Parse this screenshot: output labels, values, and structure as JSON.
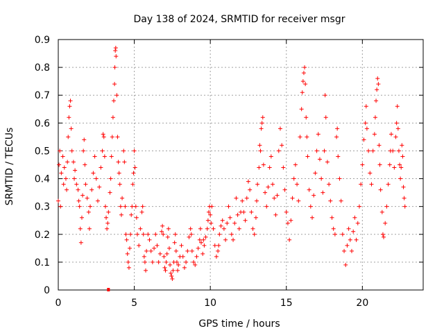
{
  "chart_data": {
    "type": "scatter",
    "title": "Day 138 of 2024, SRMTID for receiver msgr",
    "xlabel": "GPS time / hours",
    "ylabel": "SRMTID / TECUs",
    "xlim": [
      0,
      24
    ],
    "ylim": [
      0,
      0.9
    ],
    "xticks": [
      0,
      5,
      10,
      15,
      20
    ],
    "yticks": [
      0,
      0.1,
      0.2,
      0.3,
      0.4,
      0.5,
      0.6,
      0.7,
      0.8,
      0.9
    ],
    "ytick_labels": [
      "0",
      "0.1",
      "0.2",
      "0.3",
      "0.4",
      "0.5",
      "0.6",
      "0.7",
      "0.8",
      "0.9"
    ],
    "grid": true,
    "marker": "+",
    "color": "#ff0000",
    "series": [
      {
        "name": "SRMTID",
        "points": [
          [
            0.0,
            0.32
          ],
          [
            0.05,
            0.45
          ],
          [
            0.1,
            0.5
          ],
          [
            0.15,
            0.3
          ],
          [
            0.2,
            0.42
          ],
          [
            0.3,
            0.48
          ],
          [
            0.35,
            0.38
          ],
          [
            0.4,
            0.44
          ],
          [
            0.5,
            0.4
          ],
          [
            0.55,
            0.36
          ],
          [
            0.6,
            0.46
          ],
          [
            0.65,
            0.55
          ],
          [
            0.7,
            0.62
          ],
          [
            0.75,
            0.66
          ],
          [
            0.8,
            0.68
          ],
          [
            0.85,
            0.58
          ],
          [
            0.9,
            0.5
          ],
          [
            1.0,
            0.46
          ],
          [
            1.05,
            0.4
          ],
          [
            1.1,
            0.43
          ],
          [
            1.2,
            0.38
          ],
          [
            1.3,
            0.36
          ],
          [
            1.35,
            0.32
          ],
          [
            1.4,
            0.3
          ],
          [
            1.45,
            0.22
          ],
          [
            1.5,
            0.17
          ],
          [
            1.55,
            0.26
          ],
          [
            1.6,
            0.34
          ],
          [
            1.65,
            0.5
          ],
          [
            1.7,
            0.54
          ],
          [
            1.75,
            0.45
          ],
          [
            1.8,
            0.38
          ],
          [
            1.9,
            0.33
          ],
          [
            2.0,
            0.28
          ],
          [
            2.05,
            0.22
          ],
          [
            2.1,
            0.3
          ],
          [
            2.2,
            0.36
          ],
          [
            2.3,
            0.42
          ],
          [
            2.4,
            0.48
          ],
          [
            2.5,
            0.4
          ],
          [
            2.6,
            0.32
          ],
          [
            2.7,
            0.37
          ],
          [
            2.8,
            0.44
          ],
          [
            2.9,
            0.5
          ],
          [
            2.95,
            0.56
          ],
          [
            3.0,
            0.55
          ],
          [
            3.05,
            0.48
          ],
          [
            3.1,
            0.3
          ],
          [
            3.15,
            0.26
          ],
          [
            3.2,
            0.22
          ],
          [
            3.25,
            0.24
          ],
          [
            3.3,
            0.28
          ],
          [
            3.4,
            0.35
          ],
          [
            3.45,
            0.4
          ],
          [
            3.5,
            0.48
          ],
          [
            3.55,
            0.55
          ],
          [
            3.6,
            0.62
          ],
          [
            3.65,
            0.68
          ],
          [
            3.7,
            0.74
          ],
          [
            3.72,
            0.8
          ],
          [
            3.75,
            0.86
          ],
          [
            3.78,
            0.87
          ],
          [
            3.8,
            0.84
          ],
          [
            3.85,
            0.7
          ],
          [
            3.9,
            0.55
          ],
          [
            3.95,
            0.46
          ],
          [
            4.0,
            0.42
          ],
          [
            4.05,
            0.38
          ],
          [
            4.1,
            0.3
          ],
          [
            4.15,
            0.27
          ],
          [
            4.2,
            0.33
          ],
          [
            4.3,
            0.5
          ],
          [
            4.35,
            0.46
          ],
          [
            4.4,
            0.3
          ],
          [
            4.45,
            0.2
          ],
          [
            4.5,
            0.18
          ],
          [
            4.55,
            0.13
          ],
          [
            4.6,
            0.1
          ],
          [
            4.65,
            0.08
          ],
          [
            4.7,
            0.15
          ],
          [
            4.75,
            0.2
          ],
          [
            4.8,
            0.27
          ],
          [
            4.85,
            0.3
          ],
          [
            4.9,
            0.38
          ],
          [
            4.95,
            0.42
          ],
          [
            5.0,
            0.5
          ],
          [
            5.05,
            0.44
          ],
          [
            5.1,
            0.3
          ],
          [
            5.15,
            0.26
          ],
          [
            5.2,
            0.2
          ],
          [
            5.3,
            0.16
          ],
          [
            5.4,
            0.22
          ],
          [
            5.5,
            0.28
          ],
          [
            5.55,
            0.3
          ],
          [
            5.6,
            0.2
          ],
          [
            5.65,
            0.12
          ],
          [
            5.7,
            0.1
          ],
          [
            5.75,
            0.07
          ],
          [
            5.8,
            0.14
          ],
          [
            5.9,
            0.2
          ],
          [
            6.0,
            0.18
          ],
          [
            6.1,
            0.14
          ],
          [
            6.2,
            0.1
          ],
          [
            6.3,
            0.15
          ],
          [
            6.4,
            0.2
          ],
          [
            6.5,
            0.16
          ],
          [
            6.6,
            0.1
          ],
          [
            6.7,
            0.13
          ],
          [
            6.8,
            0.21
          ],
          [
            6.85,
            0.23
          ],
          [
            6.9,
            0.2
          ],
          [
            6.95,
            0.12
          ],
          [
            7.0,
            0.08
          ],
          [
            7.05,
            0.07
          ],
          [
            7.1,
            0.1
          ],
          [
            7.15,
            0.13
          ],
          [
            7.2,
            0.19
          ],
          [
            7.25,
            0.22
          ],
          [
            7.3,
            0.15
          ],
          [
            7.35,
            0.09
          ],
          [
            7.4,
            0.06
          ],
          [
            7.45,
            0.05
          ],
          [
            7.5,
            0.04
          ],
          [
            7.55,
            0.07
          ],
          [
            7.6,
            0.1
          ],
          [
            7.65,
            0.17
          ],
          [
            7.7,
            0.2
          ],
          [
            7.75,
            0.14
          ],
          [
            7.8,
            0.1
          ],
          [
            7.85,
            0.07
          ],
          [
            7.9,
            0.09
          ],
          [
            8.0,
            0.12
          ],
          [
            8.1,
            0.16
          ],
          [
            8.2,
            0.12
          ],
          [
            8.3,
            0.08
          ],
          [
            8.4,
            0.1
          ],
          [
            8.5,
            0.14
          ],
          [
            8.6,
            0.19
          ],
          [
            8.7,
            0.22
          ],
          [
            8.75,
            0.2
          ],
          [
            8.8,
            0.14
          ],
          [
            8.9,
            0.1
          ],
          [
            9.0,
            0.09
          ],
          [
            9.1,
            0.12
          ],
          [
            9.2,
            0.15
          ],
          [
            9.3,
            0.18
          ],
          [
            9.35,
            0.22
          ],
          [
            9.4,
            0.17
          ],
          [
            9.5,
            0.13
          ],
          [
            9.55,
            0.18
          ],
          [
            9.6,
            0.16
          ],
          [
            9.7,
            0.19
          ],
          [
            9.8,
            0.22
          ],
          [
            9.85,
            0.25
          ],
          [
            9.9,
            0.28
          ],
          [
            9.95,
            0.3
          ],
          [
            10.0,
            0.27
          ],
          [
            10.05,
            0.24
          ],
          [
            10.1,
            0.3
          ],
          [
            10.2,
            0.22
          ],
          [
            10.3,
            0.16
          ],
          [
            10.4,
            0.12
          ],
          [
            10.5,
            0.14
          ],
          [
            10.55,
            0.16
          ],
          [
            10.6,
            0.2
          ],
          [
            10.7,
            0.23
          ],
          [
            10.8,
            0.25
          ],
          [
            10.9,
            0.22
          ],
          [
            11.0,
            0.18
          ],
          [
            11.1,
            0.24
          ],
          [
            11.2,
            0.3
          ],
          [
            11.3,
            0.26
          ],
          [
            11.4,
            0.2
          ],
          [
            11.5,
            0.18
          ],
          [
            11.6,
            0.24
          ],
          [
            11.7,
            0.33
          ],
          [
            11.8,
            0.27
          ],
          [
            11.9,
            0.22
          ],
          [
            12.0,
            0.28
          ],
          [
            12.1,
            0.32
          ],
          [
            12.2,
            0.28
          ],
          [
            12.3,
            0.25
          ],
          [
            12.4,
            0.33
          ],
          [
            12.5,
            0.39
          ],
          [
            12.6,
            0.36
          ],
          [
            12.7,
            0.28
          ],
          [
            12.8,
            0.22
          ],
          [
            12.9,
            0.2
          ],
          [
            13.0,
            0.26
          ],
          [
            13.05,
            0.32
          ],
          [
            13.1,
            0.38
          ],
          [
            13.2,
            0.44
          ],
          [
            13.25,
            0.52
          ],
          [
            13.3,
            0.5
          ],
          [
            13.35,
            0.58
          ],
          [
            13.4,
            0.6
          ],
          [
            13.45,
            0.62
          ],
          [
            13.5,
            0.45
          ],
          [
            13.6,
            0.35
          ],
          [
            13.7,
            0.3
          ],
          [
            13.8,
            0.37
          ],
          [
            13.9,
            0.44
          ],
          [
            14.0,
            0.48
          ],
          [
            14.1,
            0.38
          ],
          [
            14.2,
            0.33
          ],
          [
            14.3,
            0.27
          ],
          [
            14.4,
            0.34
          ],
          [
            14.5,
            0.5
          ],
          [
            14.6,
            0.58
          ],
          [
            14.7,
            0.52
          ],
          [
            14.8,
            0.44
          ],
          [
            14.9,
            0.36
          ],
          [
            15.0,
            0.28
          ],
          [
            15.1,
            0.24
          ],
          [
            15.2,
            0.18
          ],
          [
            15.3,
            0.25
          ],
          [
            15.4,
            0.33
          ],
          [
            15.5,
            0.4
          ],
          [
            15.6,
            0.45
          ],
          [
            15.7,
            0.38
          ],
          [
            15.8,
            0.32
          ],
          [
            15.9,
            0.55
          ],
          [
            16.0,
            0.65
          ],
          [
            16.05,
            0.71
          ],
          [
            16.1,
            0.75
          ],
          [
            16.15,
            0.78
          ],
          [
            16.2,
            0.8
          ],
          [
            16.25,
            0.74
          ],
          [
            16.3,
            0.62
          ],
          [
            16.35,
            0.55
          ],
          [
            16.4,
            0.48
          ],
          [
            16.5,
            0.36
          ],
          [
            16.6,
            0.3
          ],
          [
            16.7,
            0.26
          ],
          [
            16.8,
            0.34
          ],
          [
            16.9,
            0.42
          ],
          [
            17.0,
            0.5
          ],
          [
            17.1,
            0.56
          ],
          [
            17.2,
            0.47
          ],
          [
            17.3,
            0.4
          ],
          [
            17.4,
            0.35
          ],
          [
            17.5,
            0.5
          ],
          [
            17.55,
            0.7
          ],
          [
            17.6,
            0.62
          ],
          [
            17.7,
            0.46
          ],
          [
            17.8,
            0.38
          ],
          [
            17.9,
            0.32
          ],
          [
            18.0,
            0.26
          ],
          [
            18.1,
            0.22
          ],
          [
            18.2,
            0.2
          ],
          [
            18.3,
            0.55
          ],
          [
            18.35,
            0.58
          ],
          [
            18.4,
            0.48
          ],
          [
            18.5,
            0.4
          ],
          [
            18.6,
            0.32
          ],
          [
            18.7,
            0.2
          ],
          [
            18.8,
            0.14
          ],
          [
            18.9,
            0.09
          ],
          [
            19.0,
            0.16
          ],
          [
            19.1,
            0.22
          ],
          [
            19.2,
            0.18
          ],
          [
            19.3,
            0.14
          ],
          [
            19.4,
            0.21
          ],
          [
            19.5,
            0.26
          ],
          [
            19.6,
            0.18
          ],
          [
            19.7,
            0.24
          ],
          [
            19.8,
            0.3
          ],
          [
            19.9,
            0.38
          ],
          [
            20.0,
            0.45
          ],
          [
            20.1,
            0.54
          ],
          [
            20.2,
            0.6
          ],
          [
            20.25,
            0.66
          ],
          [
            20.3,
            0.58
          ],
          [
            20.4,
            0.5
          ],
          [
            20.5,
            0.42
          ],
          [
            20.6,
            0.38
          ],
          [
            20.7,
            0.5
          ],
          [
            20.8,
            0.56
          ],
          [
            20.85,
            0.62
          ],
          [
            20.9,
            0.68
          ],
          [
            20.95,
            0.72
          ],
          [
            21.0,
            0.76
          ],
          [
            21.05,
            0.74
          ],
          [
            21.1,
            0.52
          ],
          [
            21.15,
            0.45
          ],
          [
            21.2,
            0.36
          ],
          [
            21.3,
            0.28
          ],
          [
            21.35,
            0.2
          ],
          [
            21.4,
            0.19
          ],
          [
            21.5,
            0.24
          ],
          [
            21.6,
            0.3
          ],
          [
            21.7,
            0.38
          ],
          [
            21.8,
            0.45
          ],
          [
            21.85,
            0.5
          ],
          [
            21.9,
            0.56
          ],
          [
            22.0,
            0.5
          ],
          [
            22.1,
            0.44
          ],
          [
            22.2,
            0.55
          ],
          [
            22.25,
            0.6
          ],
          [
            22.3,
            0.66
          ],
          [
            22.35,
            0.58
          ],
          [
            22.4,
            0.5
          ],
          [
            22.45,
            0.45
          ],
          [
            22.5,
            0.4
          ],
          [
            22.55,
            0.44
          ],
          [
            22.6,
            0.52
          ],
          [
            22.65,
            0.48
          ],
          [
            22.7,
            0.37
          ],
          [
            22.75,
            0.33
          ],
          [
            22.8,
            0.3
          ]
        ]
      }
    ],
    "outlier_markers": [
      [
        3.3,
        0.0
      ]
    ]
  }
}
